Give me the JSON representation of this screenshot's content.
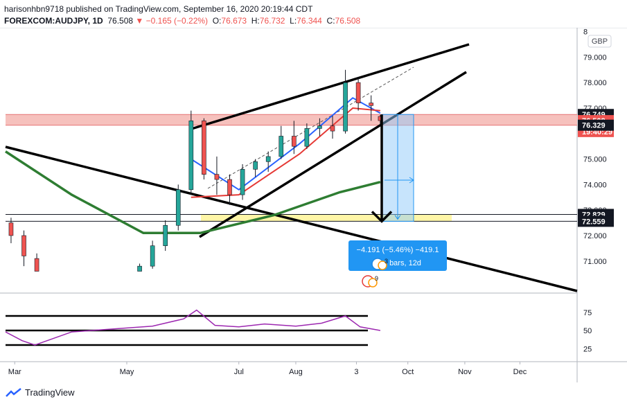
{
  "header": {
    "publisher_line": "harisonhbn9718 published on TradingView.com, September 16, 2020 20:19:44 CDT",
    "symbol": "FOREXCOM:AUDJPY, 1D",
    "last": "76.508",
    "change": "−0.165 (−0.22%)",
    "open_label": "O:",
    "open": "76.673",
    "high_label": "H:",
    "high": "76.732",
    "low_label": "L:",
    "low": "76.344",
    "close_label": "C:",
    "close": "76.508"
  },
  "currency_badge": "GBP",
  "colors": {
    "up": "#26a69a",
    "down": "#ef5350",
    "ema_fast": "#2962ff",
    "ema_slow": "#e53935",
    "ma_long": "#2e7d32",
    "rsi": "#9c27b0",
    "resistance_zone": "#f4b6b2",
    "support_zone": "#fff59d",
    "measure": "#2196f3"
  },
  "price_axis": {
    "ticks": [
      "8",
      "79.000",
      "78.000",
      "77.000",
      "75.000",
      "74.000",
      "73.000",
      "72.000",
      "71.000"
    ],
    "markers": [
      {
        "label": "76.749",
        "value": 76.749,
        "style": "dark"
      },
      {
        "label": "76.508",
        "value": 76.508,
        "style": "red"
      },
      {
        "label": "19:40:29",
        "value": 76.08,
        "style": "red"
      },
      {
        "label": "76.329",
        "value": 76.329,
        "style": "dark"
      },
      {
        "label": "72.829",
        "value": 72.829,
        "style": "dark"
      },
      {
        "label": "72.559",
        "value": 72.559,
        "style": "dark"
      }
    ]
  },
  "time_axis": {
    "ticks": [
      "Mar",
      "May",
      "Jul",
      "Aug",
      "3",
      "Oct",
      "Nov",
      "Dec"
    ]
  },
  "rsi_axis": {
    "ticks": [
      "75",
      "50",
      "25"
    ]
  },
  "measure_label": {
    "line1": "−4.191 (−5.46%) −419.1",
    "line2": "bars, 12d"
  },
  "event_badges": [
    "3",
    "9"
  ],
  "footer": {
    "brand": "TradingView"
  },
  "chart_data": {
    "type": "candlestick",
    "instrument": "FOREXCOM:AUDJPY",
    "interval": "1D",
    "x_range": [
      "2020-02-25",
      "2020-12-31"
    ],
    "ylim": [
      70.6,
      80.3
    ],
    "candles_weekly_approx": [
      {
        "date": "2020-02-28",
        "open": 72.5,
        "high": 72.7,
        "low": 71.7,
        "close": 72.0
      },
      {
        "date": "2020-03-06",
        "open": 72.0,
        "high": 72.2,
        "low": 70.8,
        "close": 71.2
      },
      {
        "date": "2020-03-13",
        "open": 71.1,
        "high": 71.3,
        "low": 70.6,
        "close": 70.6
      },
      {
        "date": "2020-05-08",
        "open": 70.6,
        "high": 70.9,
        "low": 70.6,
        "close": 70.8
      },
      {
        "date": "2020-05-15",
        "open": 70.8,
        "high": 71.8,
        "low": 70.7,
        "close": 71.6
      },
      {
        "date": "2020-05-22",
        "open": 71.6,
        "high": 72.6,
        "low": 71.4,
        "close": 72.4
      },
      {
        "date": "2020-05-29",
        "open": 72.4,
        "high": 74.0,
        "low": 72.2,
        "close": 73.8
      },
      {
        "date": "2020-06-05",
        "open": 73.8,
        "high": 76.9,
        "low": 73.6,
        "close": 76.5
      },
      {
        "date": "2020-06-12",
        "open": 76.5,
        "high": 76.6,
        "low": 74.2,
        "close": 74.4
      },
      {
        "date": "2020-06-19",
        "open": 74.4,
        "high": 75.1,
        "low": 73.6,
        "close": 74.2
      },
      {
        "date": "2020-06-26",
        "open": 74.2,
        "high": 74.4,
        "low": 73.2,
        "close": 73.6
      },
      {
        "date": "2020-07-03",
        "open": 73.6,
        "high": 74.8,
        "low": 73.4,
        "close": 74.6
      },
      {
        "date": "2020-07-10",
        "open": 74.6,
        "high": 75.0,
        "low": 74.3,
        "close": 74.9
      },
      {
        "date": "2020-07-17",
        "open": 74.9,
        "high": 75.3,
        "low": 74.5,
        "close": 75.1
      },
      {
        "date": "2020-07-24",
        "open": 75.1,
        "high": 76.3,
        "low": 75.0,
        "close": 75.9
      },
      {
        "date": "2020-07-31",
        "open": 75.9,
        "high": 76.5,
        "low": 75.2,
        "close": 75.5
      },
      {
        "date": "2020-08-07",
        "open": 75.5,
        "high": 76.4,
        "low": 75.4,
        "close": 76.2
      },
      {
        "date": "2020-08-14",
        "open": 76.2,
        "high": 76.6,
        "low": 75.9,
        "close": 76.3
      },
      {
        "date": "2020-08-21",
        "open": 76.3,
        "high": 76.7,
        "low": 75.8,
        "close": 76.1
      },
      {
        "date": "2020-08-28",
        "open": 76.1,
        "high": 78.5,
        "low": 76.0,
        "close": 78.0
      },
      {
        "date": "2020-09-04",
        "open": 78.0,
        "high": 78.2,
        "low": 76.9,
        "close": 77.2
      },
      {
        "date": "2020-09-11",
        "open": 77.2,
        "high": 77.5,
        "low": 76.5,
        "close": 77.1
      },
      {
        "date": "2020-09-16",
        "open": 76.673,
        "high": 76.732,
        "low": 76.344,
        "close": 76.508
      }
    ],
    "indicators": [
      {
        "name": "",
        "color": "#2962ff",
        "values": [
          {
            "date": "2020-06-05",
            "y": 75.0
          },
          {
            "date": "2020-07-01",
            "y": 73.8
          },
          {
            "date": "2020-08-03",
            "y": 75.6
          },
          {
            "date": "2020-09-01",
            "y": 77.4
          },
          {
            "date": "2020-09-16",
            "y": 76.8
          }
        ]
      },
      {
        "name": "",
        "color": "#e53935",
        "values": [
          {
            "date": "2020-06-05",
            "y": 73.5
          },
          {
            "date": "2020-07-01",
            "y": 73.6
          },
          {
            "date": "2020-08-03",
            "y": 75.2
          },
          {
            "date": "2020-09-01",
            "y": 77.0
          },
          {
            "date": "2020-09-16",
            "y": 76.9
          }
        ]
      },
      {
        "name": "",
        "color": "#2e7d32",
        "values": [
          {
            "date": "2020-02-25",
            "y": 75.3
          },
          {
            "date": "2020-04-01",
            "y": 73.6
          },
          {
            "date": "2020-05-10",
            "y": 72.1
          },
          {
            "date": "2020-06-10",
            "y": 72.1
          },
          {
            "date": "2020-07-20",
            "y": 72.8
          },
          {
            "date": "2020-08-25",
            "y": 73.7
          },
          {
            "date": "2020-09-16",
            "y": 74.1
          }
        ]
      }
    ],
    "rsi": {
      "ylim": [
        15,
        85
      ],
      "guide_levels": [
        70,
        50,
        30
      ],
      "values": [
        {
          "date": "2020-02-25",
          "y": 48
        },
        {
          "date": "2020-03-05",
          "y": 36
        },
        {
          "date": "2020-03-12",
          "y": 30
        },
        {
          "date": "2020-04-01",
          "y": 48
        },
        {
          "date": "2020-05-15",
          "y": 56
        },
        {
          "date": "2020-06-01",
          "y": 66
        },
        {
          "date": "2020-06-08",
          "y": 78
        },
        {
          "date": "2020-06-18",
          "y": 57
        },
        {
          "date": "2020-07-01",
          "y": 55
        },
        {
          "date": "2020-07-15",
          "y": 59
        },
        {
          "date": "2020-08-01",
          "y": 56
        },
        {
          "date": "2020-08-15",
          "y": 60
        },
        {
          "date": "2020-08-28",
          "y": 70
        },
        {
          "date": "2020-09-05",
          "y": 55
        },
        {
          "date": "2020-09-16",
          "y": 50
        }
      ]
    },
    "drawings": {
      "resistance_zone": [
        76.329,
        76.749
      ],
      "support_zone": [
        72.559,
        72.829
      ],
      "measure_from": 76.749,
      "measure_to": 72.559
    }
  }
}
